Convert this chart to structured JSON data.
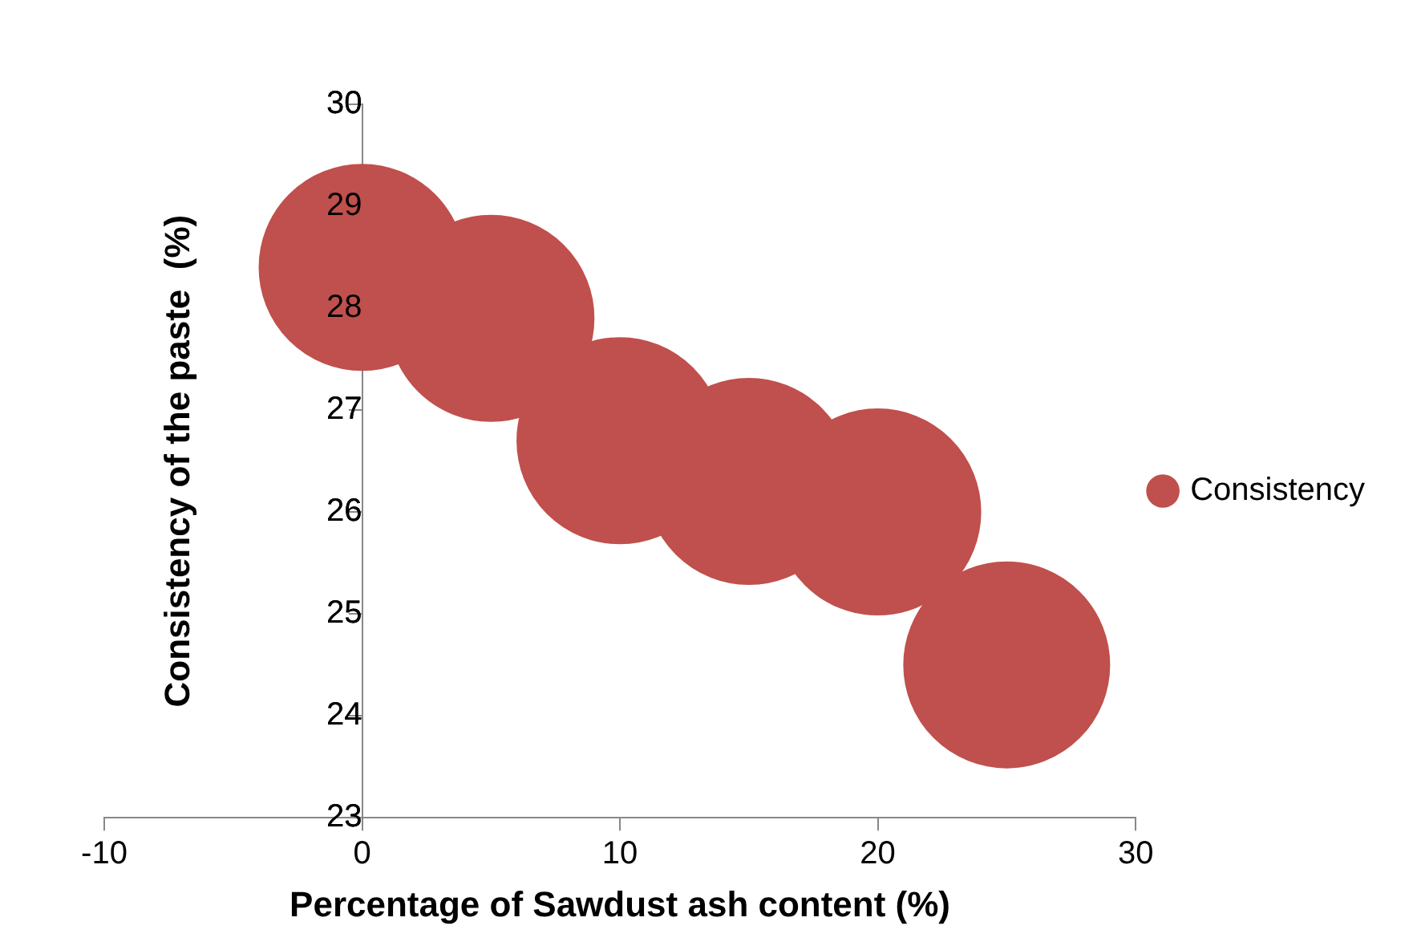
{
  "chart_data": {
    "type": "bubble",
    "xlabel": "Percentage of Sawdust ash content (%)",
    "ylabel": "Consistency of the paste  (%)",
    "x": [
      0,
      5,
      10,
      15,
      20,
      25
    ],
    "series": [
      {
        "name": "Consistency",
        "color": "#c0504d",
        "values": [
          28.4,
          27.9,
          26.7,
          26.3,
          26.0,
          24.5
        ],
        "sizes": [
          1,
          1,
          1,
          1,
          1,
          1
        ]
      }
    ],
    "xlim": [
      -10,
      30
    ],
    "xticks": [
      -10,
      0,
      10,
      20,
      30
    ],
    "ylim": [
      23,
      30
    ],
    "yticks": [
      23,
      24,
      25,
      26,
      27,
      28,
      29,
      30
    ],
    "grid": false,
    "legend": "right"
  }
}
